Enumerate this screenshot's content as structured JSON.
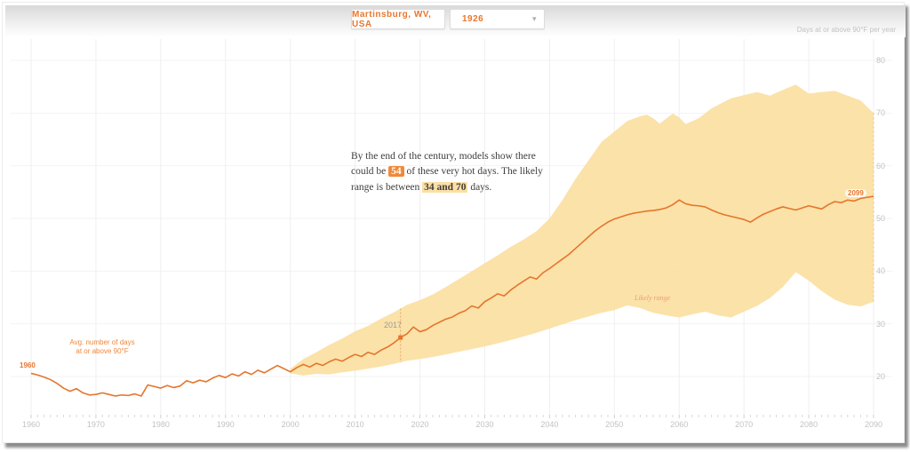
{
  "header": {
    "location": "Martinsburg, WV, USA",
    "year_selector": "1926",
    "chevron_icon": "▾",
    "unit_label": "Days at or above 90°F per year"
  },
  "annotation": {
    "part1": "By the end of the century, models show there could be ",
    "highlight1": "54",
    "part2": " of these very hot days. The likely range is between ",
    "highlight2": "34 and 70",
    "part3": " days."
  },
  "labels": {
    "line_start": "1960",
    "avg_label": "Avg. number of days\nat or above 90°F",
    "marker_year": "2017",
    "likely_range": "Likely range",
    "line_end": "2099"
  },
  "colors": {
    "line": "#e4762c",
    "band": "#fbdfa0",
    "grid_vertical": "#efefef",
    "grid_horizontal": "#f3f3f3",
    "tick": "#d8d8d8",
    "dash_marker": "#e8a96a",
    "dash_edge": "#e9c285",
    "accent": "#e8772e"
  },
  "chart_data": {
    "type": "line",
    "title": "Days at or above 90°F per year",
    "x_ticks": [
      1960,
      1970,
      1980,
      1990,
      2000,
      2010,
      2020,
      2030,
      2040,
      2050,
      2060,
      2070,
      2080,
      2090
    ],
    "y_ticks": [
      20,
      30,
      40,
      50,
      60,
      70,
      80
    ],
    "x_range": [
      1960,
      2090
    ],
    "y_range": [
      20,
      80
    ],
    "grid": true,
    "line": {
      "name": "Avg. number of days at or above 90°F",
      "start_year": 1960,
      "values": [
        20.6,
        20.3,
        19.9,
        19.4,
        18.7,
        17.8,
        17.2,
        17.7,
        16.9,
        16.5,
        16.6,
        16.9,
        16.6,
        16.3,
        16.5,
        16.4,
        16.7,
        16.3,
        18.4,
        18.1,
        17.8,
        18.3,
        17.9,
        18.2,
        19.2,
        18.8,
        19.3,
        19.0,
        19.7,
        20.2,
        19.8,
        20.5,
        20.1,
        20.9,
        20.4,
        21.2,
        20.7,
        21.4,
        22.1,
        21.5,
        20.9,
        21.7,
        22.3,
        21.8,
        22.5,
        22.1,
        22.8,
        23.3,
        22.9,
        23.6,
        24.2,
        23.8,
        24.6,
        24.2,
        25.0,
        25.6,
        26.4,
        27.4,
        28.1,
        29.4,
        28.5,
        28.9,
        29.7,
        30.3,
        30.9,
        31.3,
        32.0,
        32.5,
        33.4,
        33.0,
        34.2,
        34.9,
        35.7,
        35.3,
        36.4,
        37.3,
        38.1,
        38.9,
        38.5,
        39.7,
        40.5,
        41.4,
        42.3,
        43.2,
        44.3,
        45.4,
        46.5,
        47.6,
        48.5,
        49.3,
        49.9,
        50.3,
        50.7,
        51.0,
        51.2,
        51.4,
        51.5,
        51.7,
        52.0,
        52.6,
        53.5,
        52.8,
        52.5,
        52.4,
        52.2,
        51.6,
        51.1,
        50.7,
        50.4,
        50.1,
        49.8,
        49.3,
        50.1,
        50.8,
        51.3,
        51.8,
        52.2,
        51.9,
        51.6,
        52.0,
        52.4,
        52.1,
        51.8,
        52.6,
        53.2,
        53.0,
        53.5,
        53.3,
        53.8,
        54.0,
        54.2
      ]
    },
    "band": {
      "name": "Likely range",
      "upper": [
        [
          2000,
          21.5
        ],
        [
          2002,
          23.3
        ],
        [
          2004,
          24.6
        ],
        [
          2006,
          26.0
        ],
        [
          2008,
          27.2
        ],
        [
          2010,
          28.6
        ],
        [
          2012,
          29.6
        ],
        [
          2014,
          31.0
        ],
        [
          2016,
          32.2
        ],
        [
          2018,
          33.6
        ],
        [
          2020,
          34.5
        ],
        [
          2022,
          35.6
        ],
        [
          2024,
          37.0
        ],
        [
          2026,
          38.5
        ],
        [
          2028,
          40.0
        ],
        [
          2030,
          41.5
        ],
        [
          2032,
          43.0
        ],
        [
          2034,
          44.6
        ],
        [
          2036,
          46.0
        ],
        [
          2038,
          47.6
        ],
        [
          2040,
          50.0
        ],
        [
          2042,
          53.5
        ],
        [
          2044,
          57.5
        ],
        [
          2046,
          61.0
        ],
        [
          2048,
          64.5
        ],
        [
          2050,
          66.5
        ],
        [
          2052,
          68.5
        ],
        [
          2054,
          69.4
        ],
        [
          2055,
          69.7
        ],
        [
          2056,
          69.0
        ],
        [
          2057,
          68.0
        ],
        [
          2059,
          69.9
        ],
        [
          2060,
          69.2
        ],
        [
          2061,
          67.9
        ],
        [
          2063,
          69.0
        ],
        [
          2065,
          70.9
        ],
        [
          2068,
          72.8
        ],
        [
          2070,
          73.4
        ],
        [
          2072,
          74.0
        ],
        [
          2074,
          73.3
        ],
        [
          2076,
          74.4
        ],
        [
          2078,
          75.4
        ],
        [
          2080,
          73.7
        ],
        [
          2082,
          74.0
        ],
        [
          2084,
          74.2
        ],
        [
          2086,
          73.3
        ],
        [
          2088,
          72.4
        ],
        [
          2090,
          70.0
        ]
      ],
      "lower": [
        [
          2000,
          20.6
        ],
        [
          2002,
          20.2
        ],
        [
          2004,
          20.5
        ],
        [
          2006,
          20.4
        ],
        [
          2008,
          20.8
        ],
        [
          2010,
          21.1
        ],
        [
          2012,
          21.5
        ],
        [
          2014,
          21.9
        ],
        [
          2016,
          22.4
        ],
        [
          2018,
          23.0
        ],
        [
          2020,
          23.3
        ],
        [
          2022,
          23.7
        ],
        [
          2024,
          24.2
        ],
        [
          2026,
          24.7
        ],
        [
          2028,
          25.2
        ],
        [
          2030,
          25.7
        ],
        [
          2032,
          26.3
        ],
        [
          2034,
          26.9
        ],
        [
          2036,
          27.6
        ],
        [
          2038,
          28.3
        ],
        [
          2040,
          29.1
        ],
        [
          2042,
          29.9
        ],
        [
          2044,
          30.7
        ],
        [
          2046,
          31.4
        ],
        [
          2048,
          32.1
        ],
        [
          2050,
          32.6
        ],
        [
          2052,
          33.5
        ],
        [
          2054,
          33.0
        ],
        [
          2056,
          32.1
        ],
        [
          2058,
          31.6
        ],
        [
          2060,
          31.2
        ],
        [
          2062,
          31.8
        ],
        [
          2064,
          32.3
        ],
        [
          2066,
          31.6
        ],
        [
          2068,
          31.2
        ],
        [
          2070,
          32.3
        ],
        [
          2072,
          33.4
        ],
        [
          2074,
          34.9
        ],
        [
          2076,
          37.0
        ],
        [
          2078,
          39.8
        ],
        [
          2080,
          38.2
        ],
        [
          2082,
          36.2
        ],
        [
          2084,
          34.6
        ],
        [
          2086,
          33.6
        ],
        [
          2088,
          33.3
        ],
        [
          2090,
          34.2
        ]
      ]
    },
    "marker": {
      "year": 2017,
      "value": 27.4
    },
    "end_label": {
      "text": "2099",
      "year": 2090,
      "value": 54.2
    },
    "projection_summary": {
      "central": 54,
      "range_low": 34,
      "range_high": 70
    }
  }
}
